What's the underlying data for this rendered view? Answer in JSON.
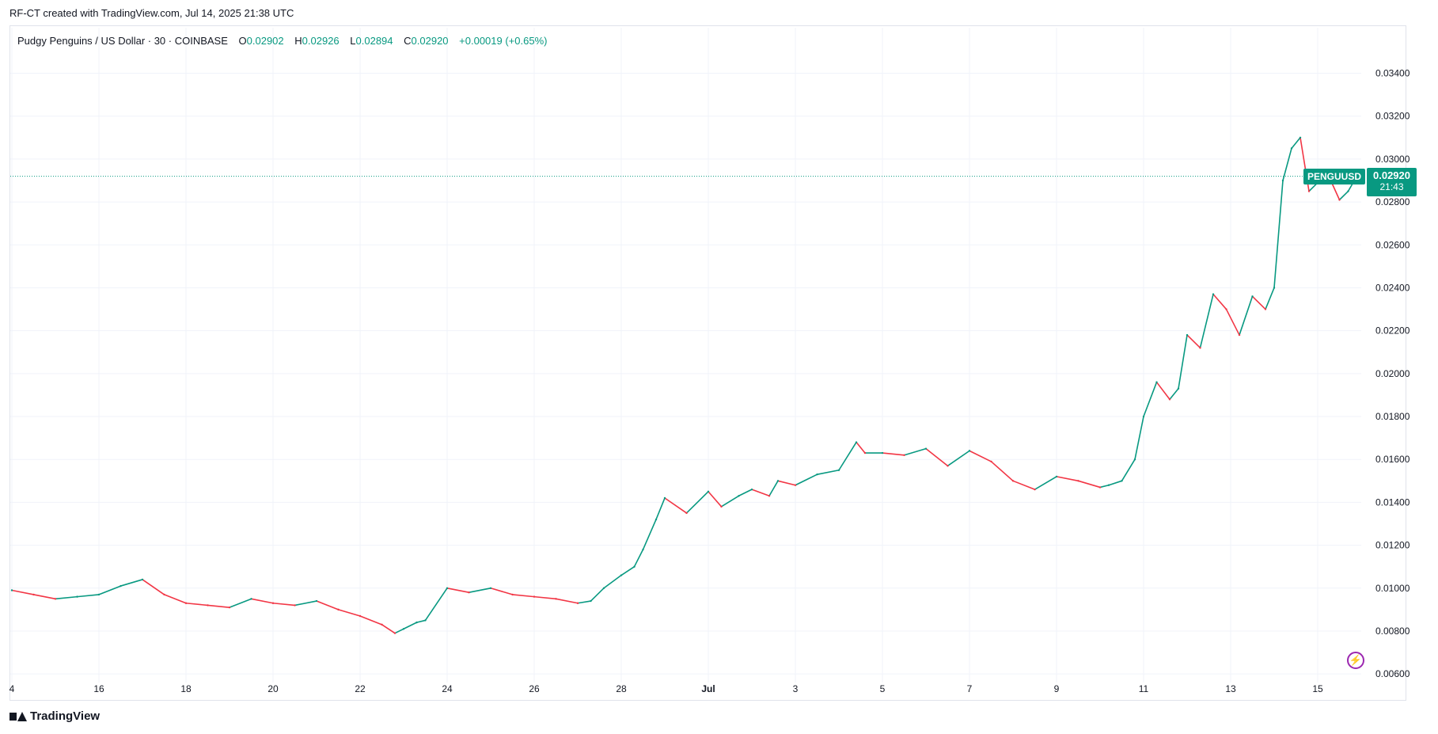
{
  "header": {
    "credit": "RF-CT created with TradingView.com, Jul 14, 2025 21:38 UTC"
  },
  "legend": {
    "title": "Pudgy Penguins / US Dollar · 30 · COINBASE",
    "open_label": "O",
    "open": "0.02902",
    "high_label": "H",
    "high": "0.02926",
    "low_label": "L",
    "low": "0.02894",
    "close_label": "C",
    "close": "0.02920",
    "change": "+0.00019 (+0.65%)"
  },
  "price_badge": {
    "symbol": "PENGUUSD",
    "price": "0.02920",
    "countdown": "21:43"
  },
  "brand": {
    "name": "TradingView"
  },
  "colors": {
    "up": "#089981",
    "down": "#f23645",
    "grid": "#f0f3fa",
    "axis_text": "#131722",
    "accent": "#9c27b0"
  },
  "icons": {
    "alert": "lightning-icon",
    "logo": "tradingview-logo-icon"
  },
  "chart_data": {
    "type": "line",
    "title": "Pudgy Penguins / US Dollar · 30 · COINBASE",
    "xlabel": "",
    "ylabel": "",
    "ylim": [
      0.0056,
      0.0352
    ],
    "y_ticks": [
      "0.03400",
      "0.03200",
      "0.03000",
      "0.02800",
      "0.02600",
      "0.02400",
      "0.02200",
      "0.02000",
      "0.01800",
      "0.01600",
      "0.01400",
      "0.01200",
      "0.01000",
      "0.00800",
      "0.00600"
    ],
    "x_tick_labels": [
      "4",
      "16",
      "18",
      "20",
      "22",
      "24",
      "26",
      "28",
      "Jul",
      "3",
      "5",
      "7",
      "9",
      "11",
      "13",
      "15"
    ],
    "x_tick_days": [
      14,
      16,
      18,
      20,
      22,
      24,
      26,
      28,
      30,
      32,
      34,
      36,
      38,
      40,
      42,
      44
    ],
    "xlim_days": [
      14,
      45
    ],
    "grid": true,
    "current_price": 0.0292,
    "series": [
      {
        "x": [
          14.0,
          14.5,
          15.0,
          15.5,
          16.0,
          16.5,
          17.0,
          17.5,
          18.0,
          18.5,
          19.0,
          19.5,
          20.0,
          20.5,
          21.0,
          21.5,
          22.0,
          22.5,
          22.8,
          23.0,
          23.3,
          23.5,
          24.0,
          24.5,
          25.0,
          25.5,
          26.0,
          26.5,
          27.0,
          27.3,
          27.6,
          28.0,
          28.3,
          28.5,
          28.8,
          29.0,
          29.5,
          30.0,
          30.3,
          30.7,
          31.0,
          31.4,
          31.6,
          32.0,
          32.5,
          33.0,
          33.4,
          33.6,
          34.0,
          34.5,
          35.0,
          35.5,
          36.0,
          36.5,
          37.0,
          37.5,
          38.0,
          38.5,
          39.0,
          39.2,
          39.5,
          39.8,
          40.0,
          40.3,
          40.6,
          40.8,
          41.0,
          41.3,
          41.6,
          41.9,
          42.2,
          42.5,
          42.8,
          43.0,
          43.2,
          43.4,
          43.6,
          43.8,
          44.0,
          44.3,
          44.5,
          44.7,
          44.9
        ],
        "values": [
          0.0099,
          0.0097,
          0.0095,
          0.0096,
          0.0097,
          0.0101,
          0.0104,
          0.0097,
          0.0093,
          0.0092,
          0.0091,
          0.0095,
          0.0093,
          0.0092,
          0.0094,
          0.009,
          0.0087,
          0.0083,
          0.0079,
          0.0081,
          0.0084,
          0.0085,
          0.01,
          0.0098,
          0.01,
          0.0097,
          0.0096,
          0.0095,
          0.0093,
          0.0094,
          0.01,
          0.0106,
          0.011,
          0.0118,
          0.0132,
          0.0142,
          0.0135,
          0.0145,
          0.0138,
          0.0143,
          0.0146,
          0.0143,
          0.015,
          0.0148,
          0.0153,
          0.0155,
          0.0168,
          0.0163,
          0.0163,
          0.0162,
          0.0165,
          0.0157,
          0.0164,
          0.0159,
          0.015,
          0.0146,
          0.0152,
          0.015,
          0.0147,
          0.0148,
          0.015,
          0.016,
          0.018,
          0.0196,
          0.0188,
          0.0193,
          0.0218,
          0.0212,
          0.0237,
          0.023,
          0.0218,
          0.0236,
          0.023,
          0.024,
          0.029,
          0.0305,
          0.031,
          0.0285,
          0.0289,
          0.029,
          0.0281,
          0.0285,
          0.0292
        ]
      }
    ]
  }
}
